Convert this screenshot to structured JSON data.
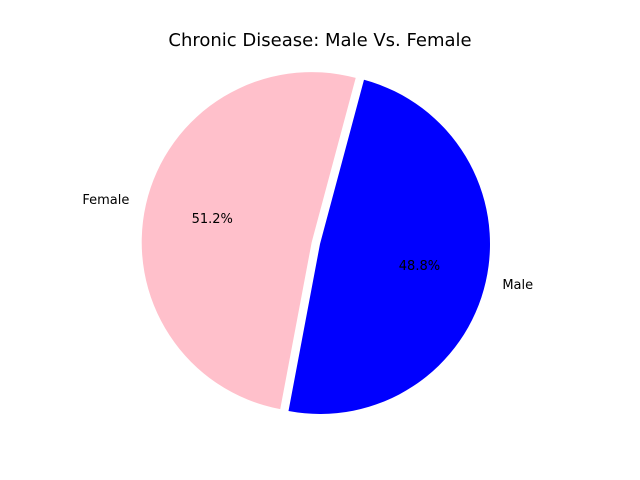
{
  "chart_data": {
    "type": "pie",
    "title": "Chronic Disease: Male Vs. Female",
    "slices": [
      {
        "label": "Female",
        "value": 51.2,
        "pct_label": "51.2%",
        "color": "#FFC0CB",
        "explode": 0.05
      },
      {
        "label": "Male",
        "value": 48.8,
        "pct_label": "48.8%",
        "color": "#0000FF",
        "explode": 0.0
      }
    ],
    "start_angle_deg": 75,
    "direction": "counterclockwise",
    "legend": "none"
  }
}
